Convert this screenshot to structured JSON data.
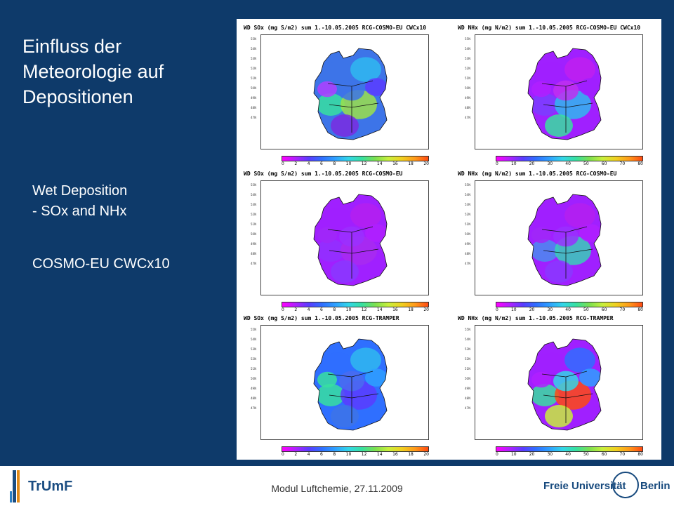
{
  "slide": {
    "title_lines": [
      "Einfluss der",
      "Meteorologie  auf",
      "Depositionen"
    ],
    "body_line1": "Wet Deposition",
    "body_line2": "- SOx and NHx",
    "body_line3": "COSMO-EU CWCx10",
    "footer": "Modul Luftchemie, 27.11.2009"
  },
  "logos": {
    "left_name": "TrUmF",
    "right_left": "Freie Universität",
    "right_right": "Berlin"
  },
  "panels": [
    {
      "title": "WD SOx (mg S/m2) sum 1.-10.05.2005 RCG-COSMO-EU CWCx10",
      "scale": [
        "0",
        "2",
        "4",
        "6",
        "8",
        "10",
        "12",
        "14",
        "16",
        "18",
        "20"
      ],
      "palette": "sox_high"
    },
    {
      "title": "WD NHx (mg N/m2) sum 1.-10.05.2005 RCG-COSMO-EU CWCx10",
      "scale": [
        "0",
        "10",
        "20",
        "30",
        "40",
        "50",
        "60",
        "70",
        "80"
      ],
      "palette": "nhx_mid"
    },
    {
      "title": "WD SOx (mg S/m2) sum 1.-10.05.2005 RCG-COSMO-EU",
      "scale": [
        "0",
        "2",
        "4",
        "6",
        "8",
        "10",
        "12",
        "14",
        "16",
        "18",
        "20"
      ],
      "palette": "low"
    },
    {
      "title": "WD NHx (mg N/m2) sum 1.-10.05.2005 RCG-COSMO-EU",
      "scale": [
        "0",
        "10",
        "20",
        "30",
        "40",
        "50",
        "60",
        "70",
        "80"
      ],
      "palette": "low_plus"
    },
    {
      "title": "WD SOx (mg S/m2) sum 1.-10.05.2005 RCG-TRAMPER",
      "scale": [
        "0",
        "2",
        "4",
        "6",
        "8",
        "10",
        "12",
        "14",
        "16",
        "18",
        "20"
      ],
      "palette": "sox_tramper"
    },
    {
      "title": "WD NHx (mg N/m2) sum 1.-10.05.2005 RCG-TRAMPER",
      "scale": [
        "0",
        "10",
        "20",
        "30",
        "40",
        "50",
        "60",
        "70",
        "80"
      ],
      "palette": "nhx_tramper"
    }
  ],
  "lat_ticks": [
    "55N",
    "54N",
    "53N",
    "52N",
    "51N",
    "50N",
    "49N",
    "48N",
    "47N"
  ],
  "colors": {
    "background": "#0e3a6a",
    "text": "#ffffff",
    "colorbar": [
      "#ff00ff",
      "#b020ff",
      "#5a3cff",
      "#2f6fff",
      "#2ea0ff",
      "#32d6e8",
      "#37e0a0",
      "#7be050",
      "#c8ef3c",
      "#f0d020",
      "#ff9a1a",
      "#ff4a12"
    ]
  }
}
